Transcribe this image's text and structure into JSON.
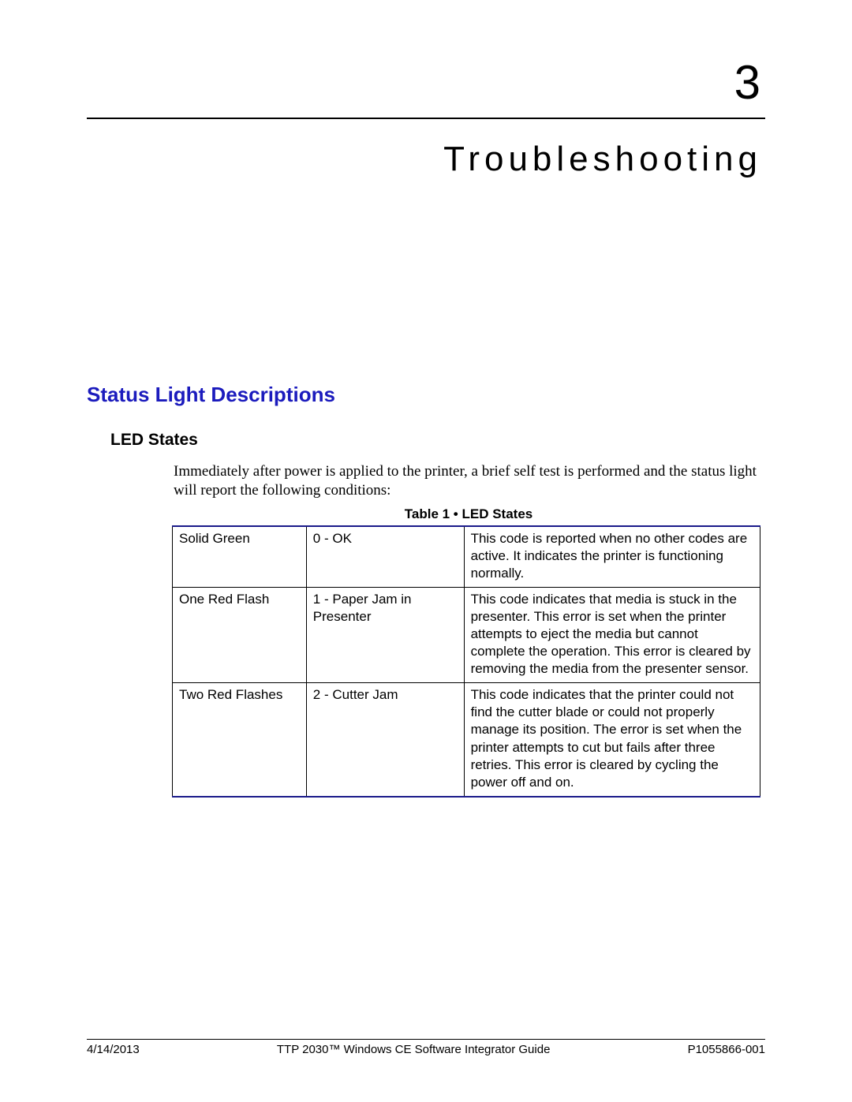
{
  "chapter": {
    "number": "3",
    "title": "Troubleshooting"
  },
  "section": {
    "heading": "Status Light Descriptions",
    "heading_color": "#1b1bbd"
  },
  "subsection": {
    "heading": "LED States"
  },
  "intro_paragraph": "Immediately after power is applied to the printer, a brief self test is performed and the status light will report the following conditions:",
  "table": {
    "caption": "Table 1 • LED States",
    "border_accent_color": "#1a1a8a",
    "columns": [
      "state",
      "code",
      "description"
    ],
    "rows": [
      {
        "state": "Solid Green",
        "code": "0 - OK",
        "description": "This code is reported when no other codes are active. It indicates the printer is functioning normally."
      },
      {
        "state": "One Red Flash",
        "code": "1 - Paper Jam in Presenter",
        "description": "This code indicates that media is stuck in the presenter. This error is set when the printer attempts to eject the media but cannot complete the operation. This error is cleared by removing the media from the presenter sensor."
      },
      {
        "state": "Two Red Flashes",
        "code": "2 - Cutter Jam",
        "description": "This code indicates that the printer could not find the cutter blade or could not properly manage its position. The error is set when the printer attempts to cut but fails after three retries. This error is cleared by cycling the power off and on."
      }
    ]
  },
  "footer": {
    "date": "4/14/2013",
    "title": "TTP 2030™ Windows CE Software Integrator Guide",
    "doc_number": "P1055866-001"
  }
}
